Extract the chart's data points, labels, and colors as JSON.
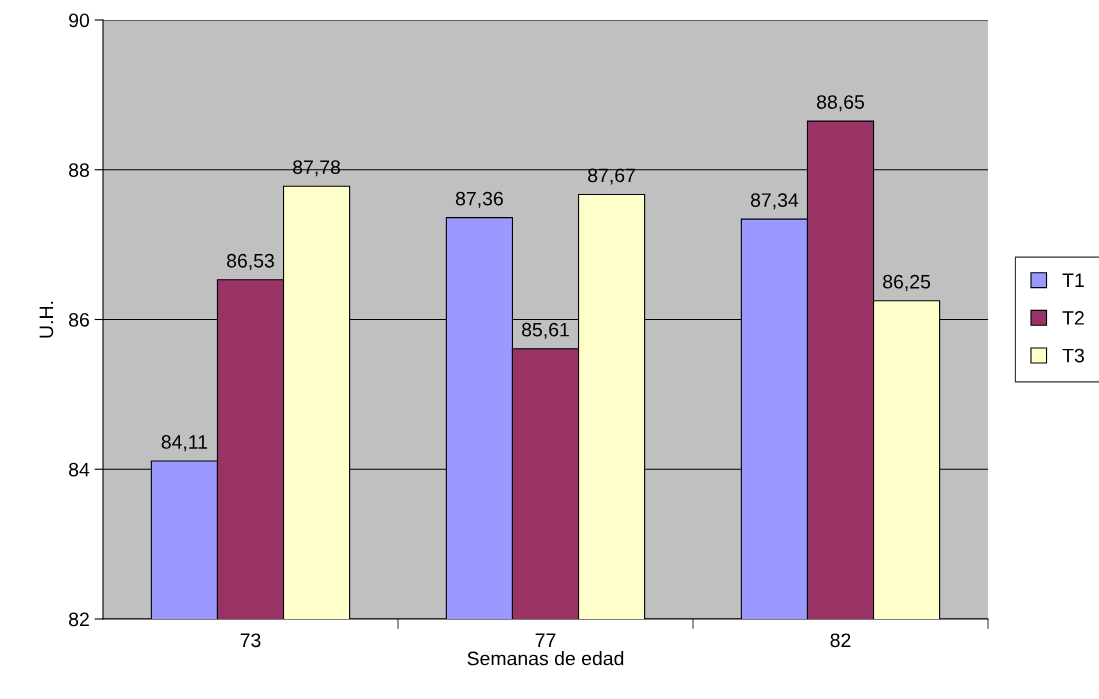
{
  "chart_data": {
    "type": "bar",
    "xlabel": "Semanas de edad",
    "ylabel": "U.H.",
    "categories": [
      "73",
      "77",
      "82"
    ],
    "series": [
      {
        "name": "T1",
        "color": "#9999ff",
        "values": [
          84.11,
          87.36,
          87.34
        ],
        "value_labels": [
          "84,11",
          "87,36",
          "87,34"
        ]
      },
      {
        "name": "T2",
        "color": "#993366",
        "values": [
          86.53,
          85.61,
          88.65
        ],
        "value_labels": [
          "86,53",
          "85,61",
          "88,65"
        ]
      },
      {
        "name": "T3",
        "color": "#ffffcc",
        "values": [
          87.78,
          87.67,
          86.25
        ],
        "value_labels": [
          "87,78",
          "87,67",
          "86,25"
        ]
      }
    ],
    "ylim": [
      82,
      90
    ],
    "yticks": [
      82,
      84,
      86,
      88,
      90
    ],
    "grid": "y",
    "legend": "right"
  }
}
